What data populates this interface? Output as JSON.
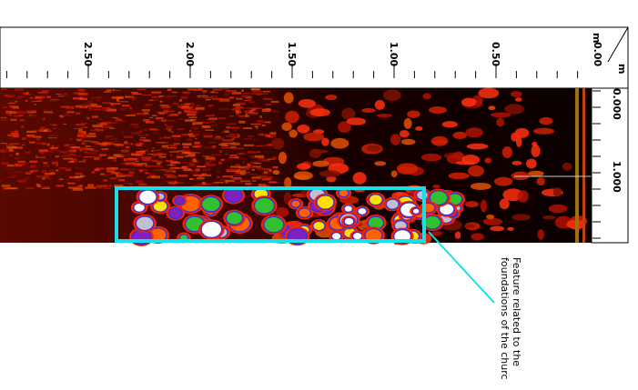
{
  "top_axis": {
    "unit": "m",
    "ticks": [
      "2.50",
      "2.00",
      "1.50",
      "1.00",
      "0.50",
      "0.00"
    ]
  },
  "right_axis": {
    "unit": "m",
    "ticks": [
      "0.000",
      "1.000"
    ]
  },
  "annotation": {
    "lines": [
      "Feature related to the",
      "foundations of the churc"
    ]
  }
}
